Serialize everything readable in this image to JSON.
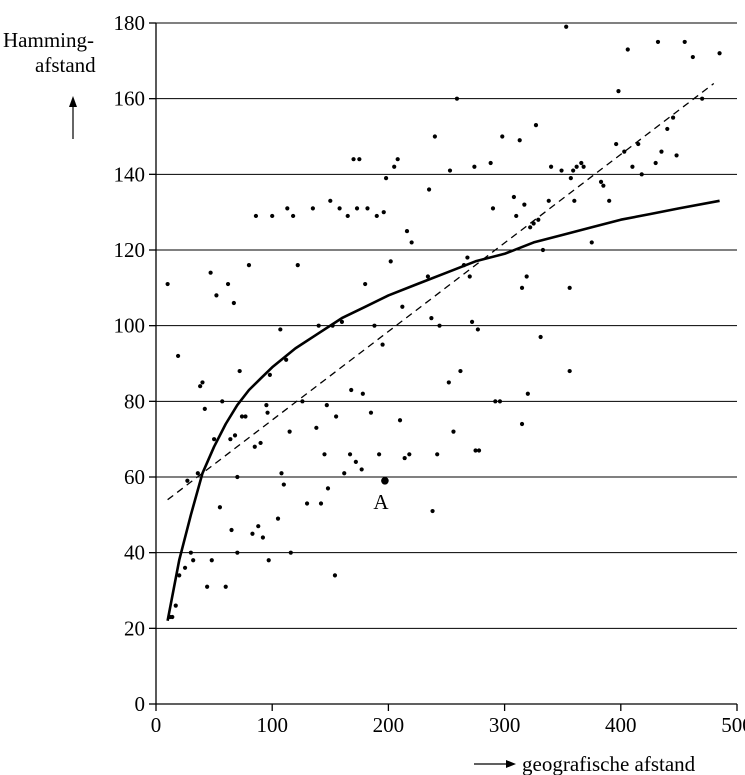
{
  "chart_data": {
    "type": "scatter",
    "title": "",
    "xlabel": "geografische afstand",
    "ylabel": "Hamming-afstand",
    "ylabel_lines": [
      "Hamming-",
      "afstand"
    ],
    "xlim": [
      0,
      500
    ],
    "ylim": [
      0,
      180
    ],
    "x_ticks": [
      0,
      100,
      200,
      300,
      400,
      500
    ],
    "y_ticks": [
      0,
      20,
      40,
      60,
      80,
      100,
      120,
      140,
      160,
      180
    ],
    "grid": "horizontal",
    "annotations": [
      {
        "text": "A",
        "x": 197,
        "y": 59
      }
    ],
    "series": [
      {
        "kind": "points",
        "points": [
          [
            10,
            111
          ],
          [
            17,
            26
          ],
          [
            19,
            92
          ],
          [
            20,
            34
          ],
          [
            25,
            36
          ],
          [
            27,
            59
          ],
          [
            30,
            40
          ],
          [
            32,
            38
          ],
          [
            36,
            61
          ],
          [
            38,
            84
          ],
          [
            40,
            85
          ],
          [
            42,
            78
          ],
          [
            44,
            31
          ],
          [
            47,
            114
          ],
          [
            48,
            38
          ],
          [
            50,
            70
          ],
          [
            52,
            108
          ],
          [
            55,
            52
          ],
          [
            57,
            80
          ],
          [
            60,
            31
          ],
          [
            62,
            111
          ],
          [
            64,
            70
          ],
          [
            65,
            46
          ],
          [
            67,
            106
          ],
          [
            68,
            71
          ],
          [
            70,
            60
          ],
          [
            70,
            40
          ],
          [
            72,
            88
          ],
          [
            74,
            76
          ],
          [
            77,
            76
          ],
          [
            80,
            116
          ],
          [
            83,
            45
          ],
          [
            85,
            68
          ],
          [
            86,
            129
          ],
          [
            88,
            47
          ],
          [
            90,
            69
          ],
          [
            92,
            44
          ],
          [
            95,
            79
          ],
          [
            96,
            77
          ],
          [
            97,
            38
          ],
          [
            98,
            87
          ],
          [
            100,
            129
          ],
          [
            105,
            49
          ],
          [
            107,
            99
          ],
          [
            108,
            61
          ],
          [
            110,
            58
          ],
          [
            112,
            91
          ],
          [
            113,
            131
          ],
          [
            115,
            72
          ],
          [
            116,
            40
          ],
          [
            118,
            129
          ],
          [
            122,
            116
          ],
          [
            126,
            80
          ],
          [
            130,
            53
          ],
          [
            135,
            131
          ],
          [
            138,
            73
          ],
          [
            140,
            100
          ],
          [
            142,
            53
          ],
          [
            145,
            66
          ],
          [
            147,
            79
          ],
          [
            148,
            57
          ],
          [
            150,
            133
          ],
          [
            152,
            100
          ],
          [
            154,
            34
          ],
          [
            155,
            76
          ],
          [
            158,
            131
          ],
          [
            160,
            101
          ],
          [
            162,
            61
          ],
          [
            165,
            129
          ],
          [
            167,
            66
          ],
          [
            168,
            83
          ],
          [
            170,
            144
          ],
          [
            172,
            64
          ],
          [
            173,
            131
          ],
          [
            175,
            144
          ],
          [
            177,
            62
          ],
          [
            178,
            82
          ],
          [
            180,
            111
          ],
          [
            182,
            131
          ],
          [
            185,
            77
          ],
          [
            188,
            100
          ],
          [
            190,
            129
          ],
          [
            192,
            66
          ],
          [
            195,
            95
          ],
          [
            196,
            130
          ],
          [
            198,
            139
          ],
          [
            202,
            117
          ],
          [
            205,
            142
          ],
          [
            208,
            144
          ],
          [
            210,
            75
          ],
          [
            212,
            105
          ],
          [
            214,
            65
          ],
          [
            216,
            125
          ],
          [
            218,
            66
          ],
          [
            220,
            122
          ],
          [
            234,
            113
          ],
          [
            235,
            136
          ],
          [
            237,
            102
          ],
          [
            238,
            51
          ],
          [
            240,
            150
          ],
          [
            242,
            66
          ],
          [
            244,
            100
          ],
          [
            252,
            85
          ],
          [
            253,
            141
          ],
          [
            256,
            72
          ],
          [
            259,
            160
          ],
          [
            262,
            88
          ],
          [
            265,
            116
          ],
          [
            268,
            118
          ],
          [
            270,
            113
          ],
          [
            272,
            101
          ],
          [
            274,
            142
          ],
          [
            275,
            67
          ],
          [
            277,
            99
          ],
          [
            278,
            67
          ],
          [
            288,
            143
          ],
          [
            290,
            131
          ],
          [
            292,
            80
          ],
          [
            296,
            80
          ],
          [
            298,
            150
          ],
          [
            308,
            134
          ],
          [
            310,
            129
          ],
          [
            313,
            149
          ],
          [
            315,
            110
          ],
          [
            317,
            132
          ],
          [
            319,
            113
          ],
          [
            320,
            82
          ],
          [
            322,
            126
          ],
          [
            325,
            127
          ],
          [
            327,
            153
          ],
          [
            329,
            128
          ],
          [
            331,
            97
          ],
          [
            333,
            120
          ],
          [
            338,
            133
          ],
          [
            340,
            142
          ],
          [
            349,
            141
          ],
          [
            353,
            179
          ],
          [
            356,
            110
          ],
          [
            357,
            139
          ],
          [
            359,
            141
          ],
          [
            360,
            133
          ],
          [
            362,
            142
          ],
          [
            366,
            143
          ],
          [
            368,
            142
          ],
          [
            375,
            122
          ],
          [
            383,
            138
          ],
          [
            385,
            137
          ],
          [
            390,
            133
          ],
          [
            396,
            148
          ],
          [
            398,
            162
          ],
          [
            403,
            146
          ],
          [
            406,
            173
          ],
          [
            410,
            142
          ],
          [
            415,
            148
          ],
          [
            418,
            140
          ],
          [
            430,
            143
          ],
          [
            432,
            175
          ],
          [
            435,
            146
          ],
          [
            440,
            152
          ],
          [
            445,
            155
          ],
          [
            448,
            145
          ],
          [
            455,
            175
          ],
          [
            462,
            171
          ],
          [
            470,
            160
          ],
          [
            485,
            172
          ],
          [
            12,
            23
          ],
          [
            14,
            23
          ],
          [
            356,
            88
          ],
          [
            315,
            74
          ]
        ]
      },
      {
        "kind": "curve",
        "style": "solid",
        "points": [
          [
            10,
            22
          ],
          [
            15,
            30
          ],
          [
            20,
            38
          ],
          [
            30,
            50
          ],
          [
            40,
            61
          ],
          [
            50,
            68
          ],
          [
            60,
            74
          ],
          [
            70,
            79
          ],
          [
            80,
            83
          ],
          [
            90,
            86
          ],
          [
            100,
            89
          ],
          [
            120,
            94
          ],
          [
            140,
            98
          ],
          [
            160,
            102
          ],
          [
            180,
            105
          ],
          [
            200,
            108
          ],
          [
            225,
            111
          ],
          [
            250,
            114
          ],
          [
            275,
            117
          ],
          [
            300,
            119
          ],
          [
            325,
            122
          ],
          [
            350,
            124
          ],
          [
            375,
            126
          ],
          [
            400,
            128
          ],
          [
            425,
            129.5
          ],
          [
            450,
            131
          ],
          [
            485,
            133
          ]
        ]
      },
      {
        "kind": "trend",
        "style": "dashed",
        "points": [
          [
            10,
            54
          ],
          [
            480,
            164
          ]
        ]
      }
    ]
  }
}
